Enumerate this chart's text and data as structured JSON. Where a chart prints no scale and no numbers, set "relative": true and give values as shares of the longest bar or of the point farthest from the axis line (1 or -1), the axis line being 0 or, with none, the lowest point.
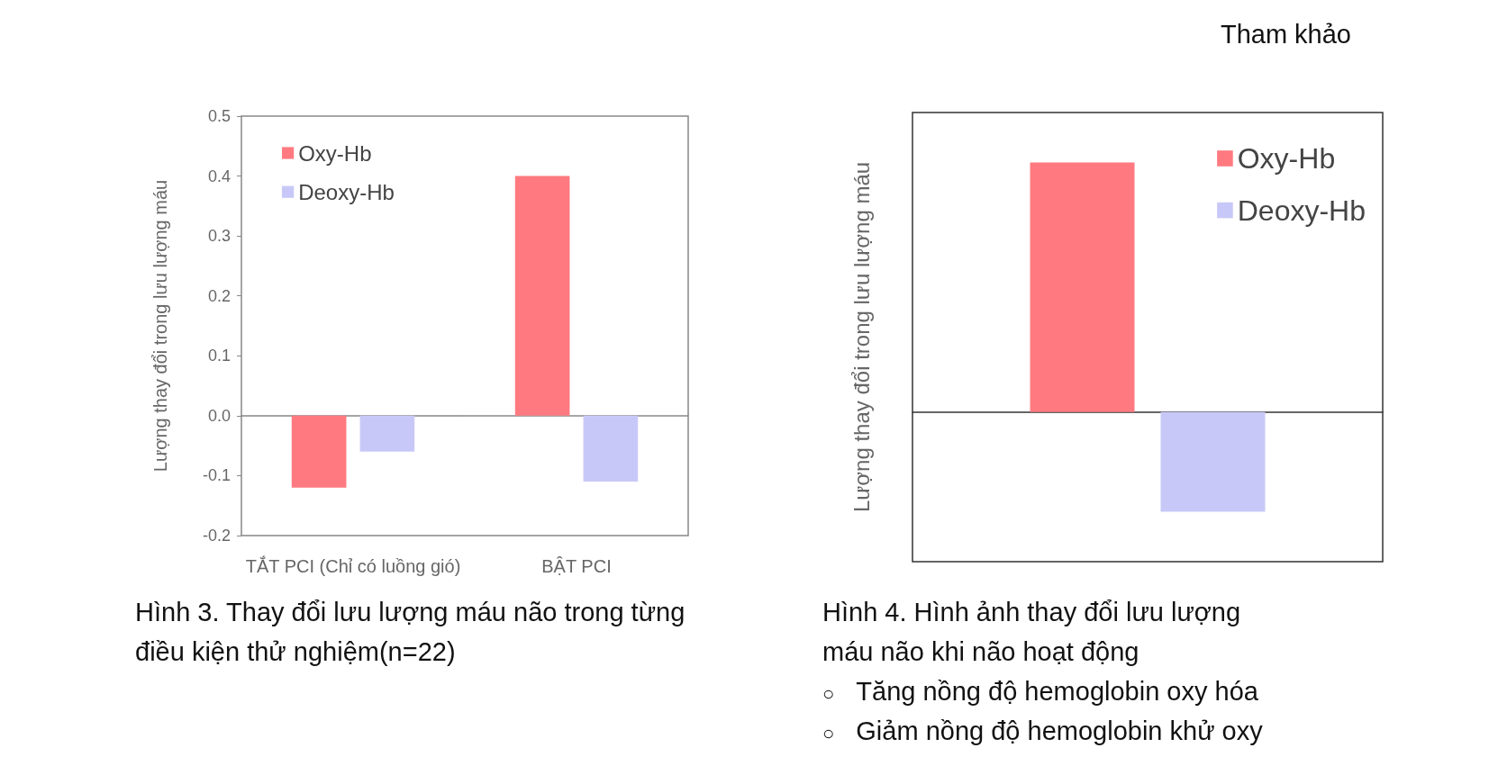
{
  "chart_data": [
    {
      "type": "bar",
      "ylabel": "Lượng thay đổi trong lưu lượng máu",
      "categories": [
        "TẮT PCI (Chỉ có luồng gió)",
        "BẬT PCI"
      ],
      "series": [
        {
          "name": "Oxy-Hb",
          "color": "#ff7a80",
          "values": [
            -0.12,
            0.4
          ]
        },
        {
          "name": "Deoxy-Hb",
          "color": "#c8c8f8",
          "values": [
            -0.06,
            -0.11
          ]
        }
      ],
      "ylim": [
        -0.2,
        0.5
      ],
      "yticks": [
        -0.2,
        -0.1,
        {
          "value": 0,
          "label": "0.0"
        },
        0.1,
        0.2,
        0.3,
        0.4,
        0.5
      ],
      "legend": "top left",
      "annotations": [
        "Hình 3. Thay đổi lưu lượng máu não trong từng điều kiện thử nghiệm(n=22)"
      ]
    },
    {
      "type": "bar",
      "relative": true,
      "ylabel": "Lượng thay đổi trong lưu lượng máu",
      "categories": [
        null
      ],
      "series": [
        {
          "name": "Oxy-Hb",
          "color": "#ff7a80",
          "values": [
            1
          ]
        },
        {
          "name": "Deoxy-Hb",
          "color": "#c8c8f8",
          "values": [
            -0.4
          ]
        }
      ],
      "legend": "top right",
      "annotations": [
        "Hình 4. Hình ảnh thay đổi lưu lượng máu não khi não hoạt động",
        "○ Tăng nồng độ hemoglobin oxy hóa",
        "○ Giảm nồng độ hemoglobin khử oxy",
        "Tham khảo"
      ]
    }
  ]
}
